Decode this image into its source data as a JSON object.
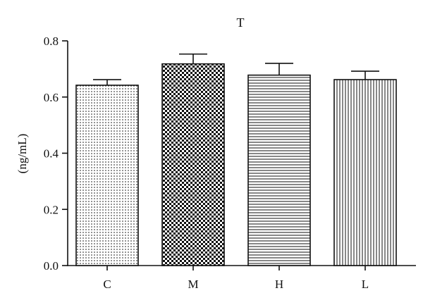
{
  "chart_data": {
    "type": "bar",
    "title": "T",
    "xlabel": "",
    "ylabel": "(ng/mL)",
    "categories": [
      "C",
      "M",
      "H",
      "L"
    ],
    "values": [
      0.642,
      0.718,
      0.678,
      0.662
    ],
    "errors": [
      0.02,
      0.035,
      0.042,
      0.03
    ],
    "patterns": [
      "dots",
      "checker",
      "horizontal-lines",
      "vertical-lines"
    ],
    "ylim": [
      0,
      0.8
    ],
    "yticks": [
      "0.0",
      "0.2",
      "0.4",
      "0.6",
      "0.8"
    ],
    "grid": false,
    "legend": "none"
  }
}
